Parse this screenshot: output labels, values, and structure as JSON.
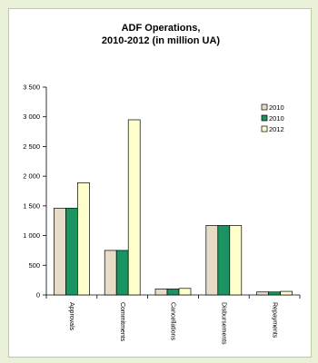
{
  "chart_data": {
    "type": "bar",
    "title": [
      "ADF Operations,",
      "2010-2012 (in million UA)"
    ],
    "xlabel": "",
    "ylabel": "",
    "ylim": [
      0,
      3500
    ],
    "yticks": [
      0,
      500,
      1000,
      1500,
      2000,
      2500,
      3000,
      3500
    ],
    "ytick_labels": [
      "0",
      "500",
      "1 000",
      "1 500",
      "2 000",
      "2 500",
      "3 000",
      "3 500"
    ],
    "categories": [
      "Approvals",
      "Commitments",
      "Cancellations",
      "Disbursements",
      "Repayments"
    ],
    "series": [
      {
        "name": "2010",
        "color": "#e6dcc8",
        "values": [
          1460,
          750,
          100,
          1170,
          50
        ]
      },
      {
        "name": "2010",
        "color": "#1a9460",
        "values": [
          1460,
          750,
          100,
          1170,
          50
        ]
      },
      {
        "name": "2012",
        "color": "#ffffcc",
        "values": [
          1890,
          2950,
          110,
          1170,
          60
        ]
      }
    ],
    "grid": false,
    "legend": "top-right"
  },
  "colors": {
    "background": "#e8f0d8",
    "panel_border": "#b9cda0"
  }
}
